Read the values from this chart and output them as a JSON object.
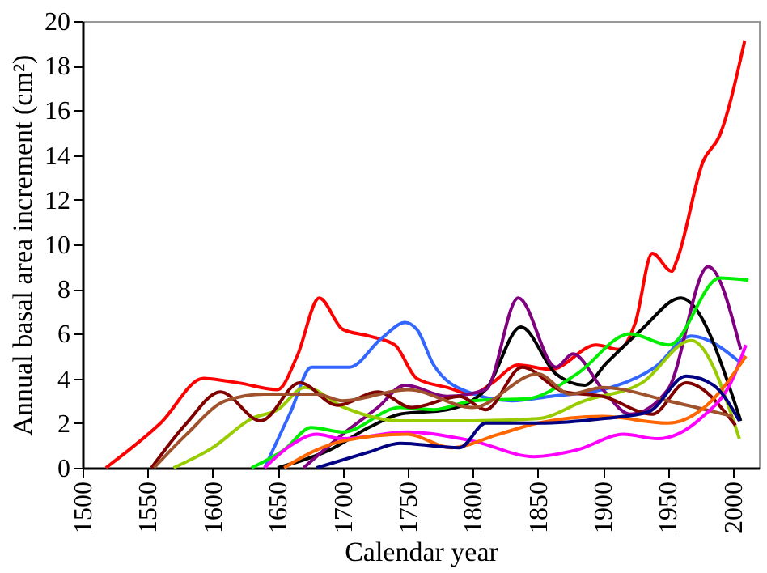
{
  "chart_data": {
    "type": "line",
    "xlabel": "Calendar year",
    "ylabel": "Annual basal area increment (cm²)",
    "xlim": [
      1500,
      2020
    ],
    "xticks": [
      1500,
      1550,
      1600,
      1650,
      1700,
      1750,
      1800,
      1850,
      1900,
      1950,
      2000
    ],
    "ylim": [
      0,
      20
    ],
    "yticks": [
      0,
      2,
      4,
      6,
      8,
      10,
      12,
      14,
      16,
      18,
      20
    ],
    "grid": false,
    "legend": false,
    "marker": "none",
    "line_style": "solid",
    "series": [
      {
        "color": "#ff0000",
        "x": [
          1518,
          1560,
          1593,
          1620,
          1650,
          1665,
          1682,
          1700,
          1720,
          1740,
          1757,
          1780,
          1800,
          1815,
          1835,
          1860,
          1895,
          1912,
          1925,
          1938,
          1953,
          1957,
          1977,
          1990,
          2009
        ],
        "values": [
          0,
          2,
          4,
          3.8,
          3.5,
          5,
          7.6,
          6.2,
          5.9,
          5.5,
          4,
          3.6,
          3.3,
          3.8,
          4.6,
          4.4,
          5.5,
          5.3,
          6.5,
          9.6,
          8.8,
          9.3,
          13.7,
          14.9,
          19.1
        ]
      },
      {
        "color": "#3366ff",
        "x": [
          1640,
          1660,
          1676,
          1705,
          1730,
          1748,
          1757,
          1770,
          1796,
          1830,
          1860,
          1900,
          1940,
          1968,
          2006
        ],
        "values": [
          0,
          2.5,
          4.5,
          4.5,
          5.8,
          6.5,
          6.2,
          4.6,
          3.4,
          3,
          3.2,
          3.5,
          4.5,
          5.9,
          4.7
        ]
      },
      {
        "color": "#000000",
        "x": [
          1650,
          1690,
          1720,
          1744,
          1780,
          1810,
          1837,
          1864,
          1886,
          1903,
          1930,
          1960,
          2006
        ],
        "values": [
          0,
          0.8,
          1.8,
          2.4,
          2.6,
          3.5,
          6.3,
          4.2,
          3.7,
          4.7,
          6.2,
          7.6,
          2.1
        ]
      },
      {
        "color": "#800080",
        "x": [
          1670,
          1700,
          1727,
          1748,
          1780,
          1810,
          1835,
          1864,
          1877,
          1900,
          1921,
          1950,
          1981,
          2006
        ],
        "values": [
          0,
          1.5,
          2.7,
          3.7,
          3.2,
          3.5,
          7.6,
          4.5,
          5.1,
          3.5,
          2.4,
          3.5,
          9,
          5.3
        ]
      },
      {
        "color": "#00ee00",
        "x": [
          1630,
          1655,
          1676,
          1700,
          1744,
          1770,
          1800,
          1843,
          1880,
          1921,
          1951,
          1990,
          2012
        ],
        "values": [
          0,
          0.8,
          1.8,
          1.6,
          2.7,
          2.6,
          3,
          3.1,
          4.2,
          6,
          5.5,
          8.5,
          8.4
        ]
      },
      {
        "color": "#99cc00",
        "x": [
          1570,
          1600,
          1630,
          1650,
          1671,
          1701,
          1744,
          1800,
          1850,
          1886,
          1930,
          1968,
          2005
        ],
        "values": [
          0,
          0.9,
          2.2,
          2.6,
          3.6,
          2.7,
          2.1,
          2.1,
          2.2,
          3,
          3.8,
          5.7,
          1.3
        ]
      },
      {
        "color": "#800000",
        "x": [
          1553,
          1580,
          1606,
          1637,
          1667,
          1696,
          1727,
          1753,
          1790,
          1810,
          1838,
          1870,
          1900,
          1938,
          1964,
          2002
        ],
        "values": [
          0,
          2,
          3.4,
          2.1,
          3.8,
          2.8,
          3.4,
          2.7,
          3.2,
          2.6,
          4.5,
          3.4,
          3.2,
          2.4,
          3.8,
          1.9
        ]
      },
      {
        "color": "#a0522d",
        "x": [
          1555,
          1580,
          1610,
          1640,
          1680,
          1700,
          1750,
          1800,
          1850,
          1875,
          1900,
          1950,
          2000
        ],
        "values": [
          0,
          1.5,
          3,
          3.3,
          3.3,
          3,
          3.5,
          2.7,
          4.2,
          3.3,
          3.6,
          3,
          2.3
        ]
      },
      {
        "color": "#ff00ff",
        "x": [
          1640,
          1660,
          1680,
          1700,
          1750,
          1800,
          1847,
          1880,
          1916,
          1942,
          1975,
          2000,
          2010
        ],
        "values": [
          0,
          1,
          1.5,
          1.3,
          1.6,
          1.2,
          0.5,
          0.8,
          1.5,
          1.3,
          2.2,
          4,
          5.5
        ]
      },
      {
        "color": "#ff6600",
        "x": [
          1655,
          1680,
          1700,
          1750,
          1783,
          1820,
          1850,
          1900,
          1950,
          1980,
          2010
        ],
        "values": [
          0,
          0.8,
          1.2,
          1.5,
          0.9,
          1.5,
          2,
          2.3,
          2,
          2.8,
          5
        ]
      },
      {
        "color": "#000080",
        "x": [
          1680,
          1720,
          1744,
          1790,
          1810,
          1850,
          1900,
          1935,
          1964,
          1985,
          2005
        ],
        "values": [
          0,
          0.7,
          1.1,
          0.9,
          2,
          2,
          2.2,
          2.5,
          4.1,
          3.7,
          2.1
        ]
      }
    ]
  }
}
